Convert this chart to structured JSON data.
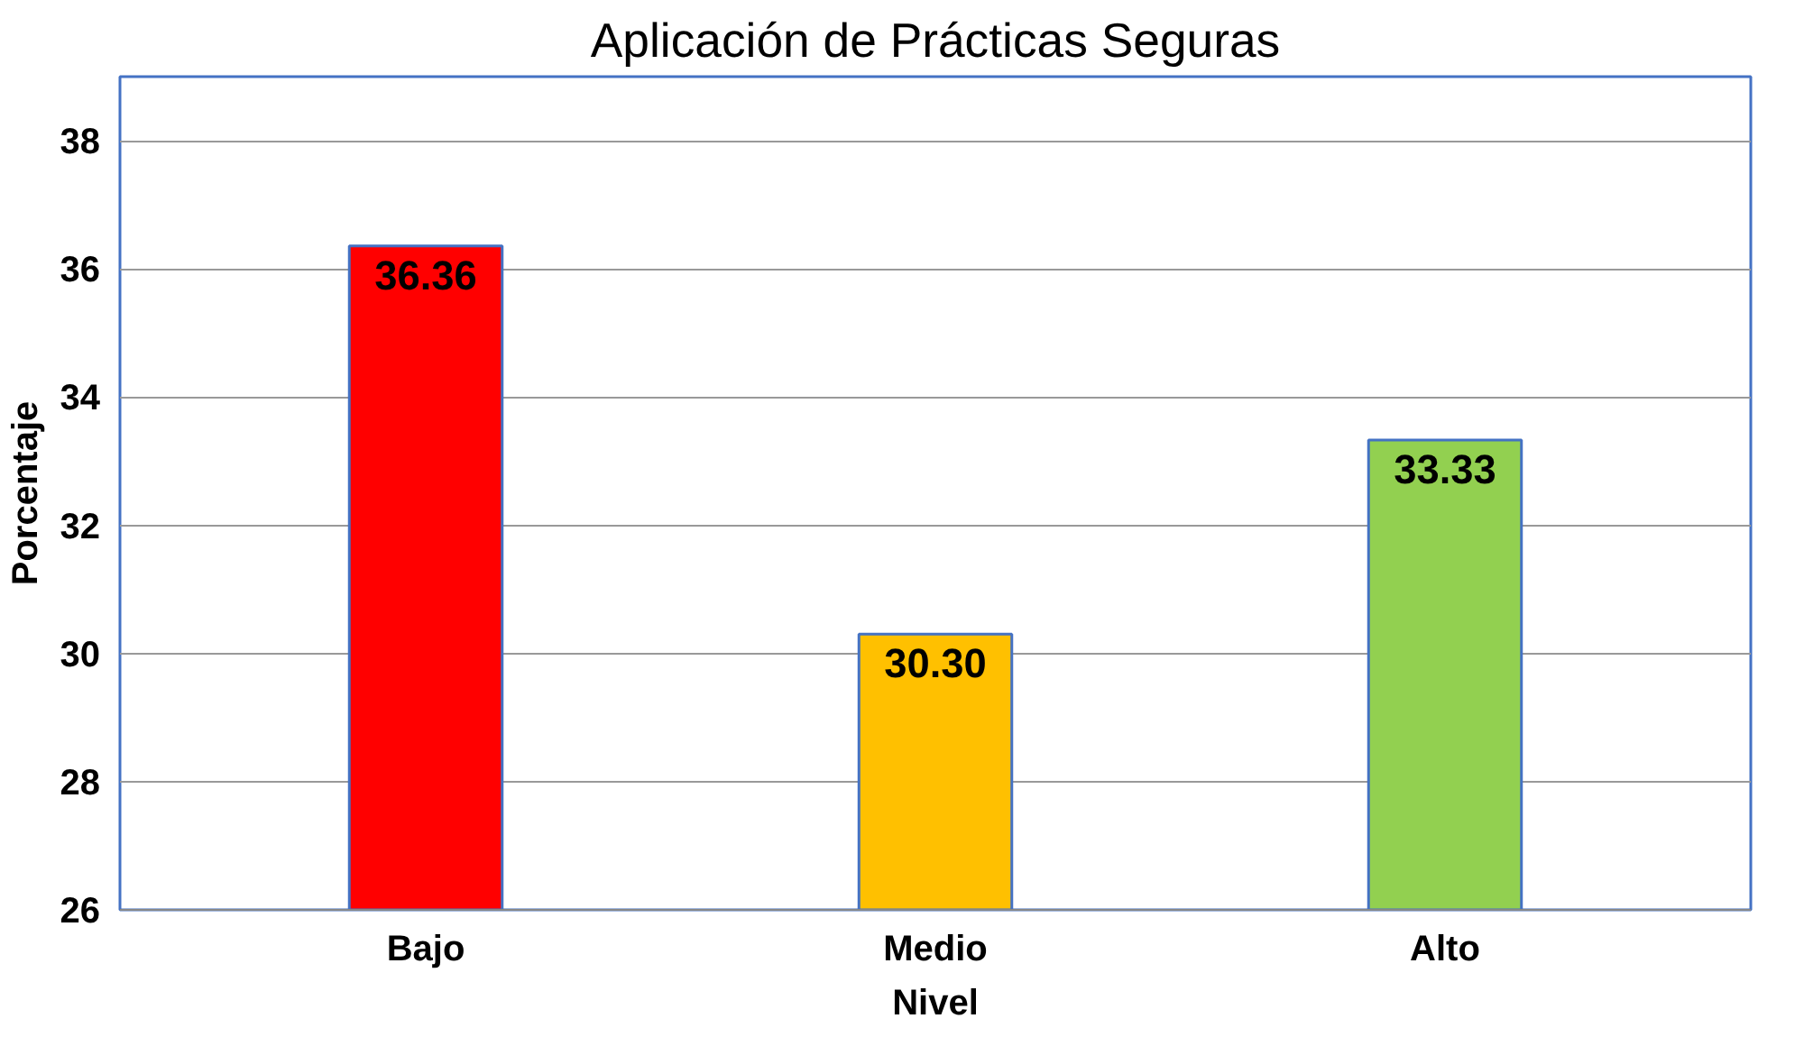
{
  "chart_data": {
    "type": "bar",
    "title": "Aplicación de Prácticas Seguras",
    "xlabel": "Nivel",
    "ylabel": "Porcentaje",
    "categories": [
      "Bajo",
      "Medio",
      "Alto"
    ],
    "values": [
      36.36,
      30.3,
      33.33
    ],
    "value_labels": [
      "36.36",
      "30.30",
      "33.33"
    ],
    "colors": [
      "#ff0000",
      "#ffc000",
      "#92d050"
    ],
    "ylim": [
      26,
      39
    ],
    "yticks": [
      26,
      28,
      30,
      32,
      34,
      36,
      38
    ],
    "grid": "y"
  }
}
